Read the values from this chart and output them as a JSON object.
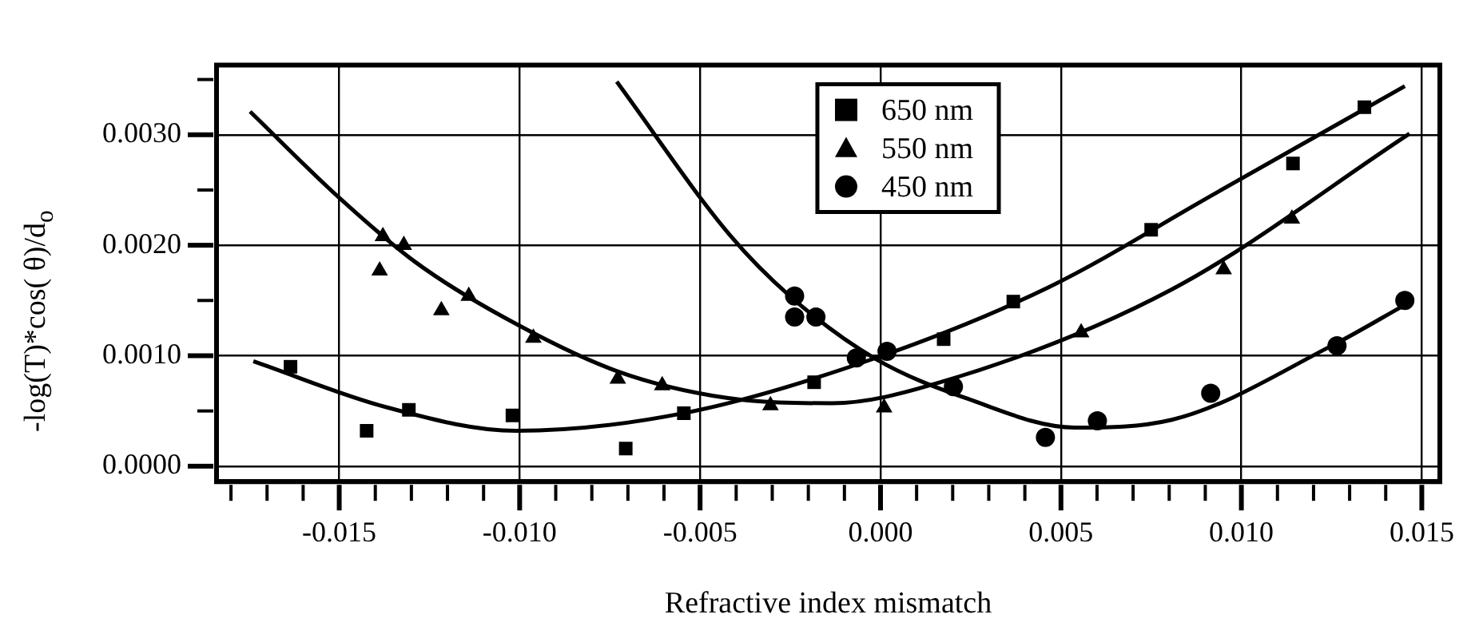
{
  "chart_data": {
    "type": "scatter",
    "xlabel": "Refractive index mismatch",
    "ylabel": "-log(T)*cos( θ)/d$_{o}$",
    "xlim": [
      -0.0184,
      0.0155
    ],
    "ylim": [
      -0.00014,
      0.00363
    ],
    "xticks": [
      -0.015,
      {
        "value": -0.014,
        "label": null
      },
      {
        "value": -0.013,
        "label": null
      },
      {
        "value": -0.012,
        "label": null
      },
      {
        "value": -0.011,
        "label": null
      },
      {
        "value": -0.01,
        "label": "-0.010"
      },
      {
        "value": -0.009,
        "label": null
      },
      {
        "value": -0.008,
        "label": null
      },
      {
        "value": -0.007,
        "label": null
      },
      {
        "value": -0.006,
        "label": null
      },
      -0.005,
      {
        "value": -0.004,
        "label": null
      },
      {
        "value": -0.003,
        "label": null
      },
      {
        "value": -0.002,
        "label": null
      },
      {
        "value": -0.001,
        "label": null
      },
      {
        "value": 0,
        "label": "0.000"
      },
      {
        "value": 0.001,
        "label": null
      },
      {
        "value": 0.002,
        "label": null
      },
      {
        "value": 0.003,
        "label": null
      },
      {
        "value": 0.004,
        "label": null
      },
      0.005,
      {
        "value": 0.006,
        "label": null
      },
      {
        "value": 0.007,
        "label": null
      },
      {
        "value": 0.008,
        "label": null
      },
      {
        "value": 0.009,
        "label": null
      },
      {
        "value": 0.01,
        "label": "0.010"
      },
      {
        "value": 0.011,
        "label": null
      },
      {
        "value": 0.012,
        "label": null
      },
      {
        "value": 0.013,
        "label": null
      },
      {
        "value": 0.014,
        "label": null
      },
      0.015,
      {
        "value": -0.016,
        "label": null
      },
      {
        "value": -0.017,
        "label": null
      },
      {
        "value": -0.018,
        "label": null
      }
    ],
    "yticks": [
      {
        "value": 0,
        "label": "0.0000"
      },
      {
        "value": 0.0005,
        "label": null
      },
      {
        "value": 0.001,
        "label": "0.0010"
      },
      {
        "value": 0.0015,
        "label": null
      },
      {
        "value": 0.002,
        "label": "0.0020"
      },
      {
        "value": 0.0025,
        "label": null
      },
      {
        "value": 0.003,
        "label": "0.0030"
      },
      {
        "value": 0.0035,
        "label": null
      }
    ],
    "grid": true,
    "legend": "top",
    "series": [
      {
        "name": "650 nm",
        "marker": "square",
        "color": "#000000",
        "x": [
          -0.01635,
          -0.01424,
          -0.01307,
          -0.0102,
          -0.00706,
          -0.00545,
          -0.00184,
          0.00175,
          0.00368,
          0.0075,
          0.01143,
          0.01341
        ],
        "values": [
          0.0009,
          0.00032,
          0.00051,
          0.00046,
          0.00016,
          0.00048,
          0.00076,
          0.00115,
          0.00149,
          0.00214,
          0.00274,
          0.00325
        ]
      },
      {
        "name": "550 nm",
        "marker": "triangle",
        "color": "#000000",
        "x": [
          -0.01379,
          -0.01321,
          -0.01388,
          -0.01217,
          -0.01141,
          -0.00962,
          -0.00728,
          -0.00605,
          -0.00305,
          0.0001,
          0.00202,
          0.00556,
          0.00951,
          0.0114
        ],
        "values": [
          0.00208,
          0.002,
          0.00177,
          0.00141,
          0.00154,
          0.00116,
          0.00079,
          0.00073,
          0.00055,
          0.00053,
          null,
          0.00121,
          0.00178,
          0.00224
        ]
      },
      {
        "name": "450 nm",
        "marker": "circle",
        "color": "#000000",
        "x": [
          -0.00238,
          -0.00238,
          -0.00179,
          -0.00067,
          0.00018,
          0.00202,
          0.00457,
          0.00601,
          0.00915,
          0.01265,
          0.01453
        ],
        "values": [
          0.00154,
          0.00135,
          0.00135,
          0.00098,
          0.00104,
          0.00072,
          0.00026,
          0.00041,
          0.00066,
          0.00109,
          0.0015
        ]
      },
      {
        "type": "line",
        "color": "#000000",
        "line_style": "solid",
        "x": [
          -0.01738,
          -0.01365,
          -0.0101,
          -0.00545,
          -0.00013,
          0.00466,
          0.00928,
          0.01453
        ],
        "values": [
          0.00095,
          0.00053,
          0.00032,
          0.00048,
          0.00098,
          0.00162,
          0.00247,
          0.00344
        ]
      },
      {
        "type": "line",
        "color": "#000000",
        "line_style": "solid",
        "x": [
          -0.01747,
          -0.015,
          -0.0129,
          -0.01045,
          -0.0073,
          -0.0043,
          -0.00135,
          0.00166,
          0.00807,
          0.01466
        ],
        "values": [
          0.00321,
          0.00243,
          0.00185,
          0.00135,
          0.00086,
          0.00062,
          0.00057,
          0.00076,
          0.0016,
          0.00301
        ]
      },
      {
        "type": "line",
        "color": "#000000",
        "line_style": "solid",
        "x": [
          -0.00731,
          -0.00417,
          -0.00251,
          -0.00013,
          0.00242,
          0.00538,
          0.00807,
          0.01256,
          0.01453
        ],
        "values": [
          0.00348,
          0.00209,
          0.00154,
          0.00097,
          0.00061,
          0.00035,
          0.00042,
          0.0011,
          0.00146
        ]
      }
    ]
  }
}
